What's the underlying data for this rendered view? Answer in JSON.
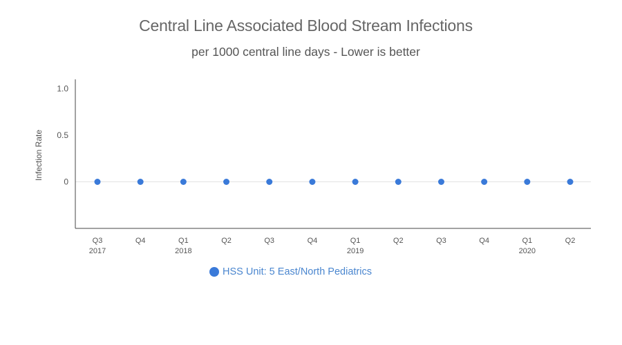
{
  "chart_data": {
    "type": "scatter",
    "title": "Central Line Associated Blood Stream Infections",
    "subtitle": "per 1000 central line days - Lower is better",
    "ylabel": "Infection Rate",
    "xlabel": "",
    "ylim": [
      -0.5,
      1.1
    ],
    "y_ticks": [
      {
        "value": 1.0,
        "label": "1.0"
      },
      {
        "value": 0.5,
        "label": "0.5"
      },
      {
        "value": 0,
        "label": "0"
      }
    ],
    "categories": [
      {
        "q": "Q3",
        "year": "2017"
      },
      {
        "q": "Q4",
        "year": ""
      },
      {
        "q": "Q1",
        "year": "2018"
      },
      {
        "q": "Q2",
        "year": ""
      },
      {
        "q": "Q3",
        "year": ""
      },
      {
        "q": "Q4",
        "year": ""
      },
      {
        "q": "Q1",
        "year": "2019"
      },
      {
        "q": "Q2",
        "year": ""
      },
      {
        "q": "Q3",
        "year": ""
      },
      {
        "q": "Q4",
        "year": ""
      },
      {
        "q": "Q1",
        "year": "2020"
      },
      {
        "q": "Q2",
        "year": ""
      }
    ],
    "series": [
      {
        "name": "HSS Unit: 5 East/North Pediatrics",
        "color": "#3a7ad9",
        "values": [
          0,
          0,
          0,
          0,
          0,
          0,
          0,
          0,
          0,
          0,
          0,
          0
        ]
      }
    ],
    "grid": "horizontal at zero only",
    "legend_position": "bottom"
  }
}
